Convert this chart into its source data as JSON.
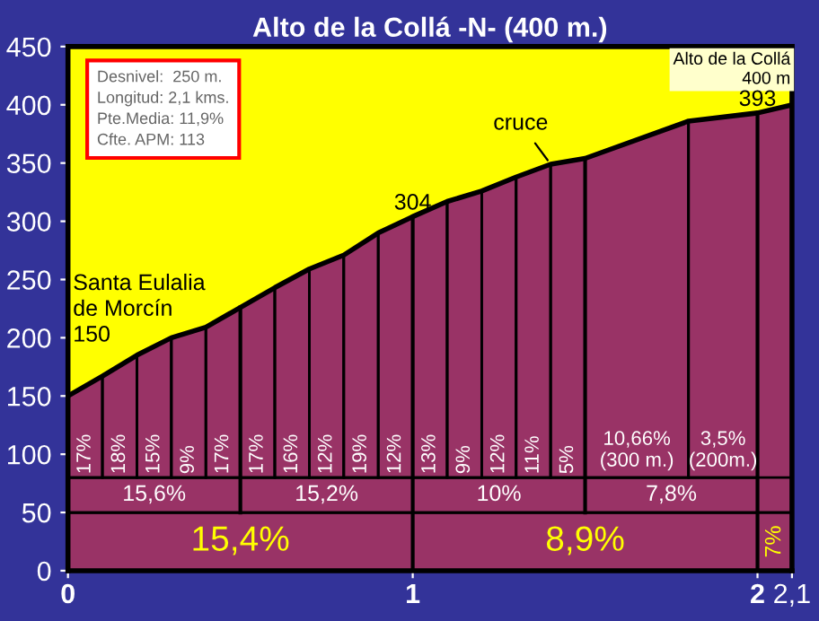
{
  "chart_data": {
    "type": "area",
    "title": "Alto de la Collá -N- (400 m.)",
    "x": [
      0,
      0.1,
      0.2,
      0.3,
      0.4,
      0.5,
      0.6,
      0.7,
      0.8,
      0.9,
      1.0,
      1.1,
      1.2,
      1.3,
      1.4,
      1.5,
      1.8,
      2.0,
      2.1
    ],
    "series": [
      {
        "color": "#993366",
        "values": [
          150,
          167,
          185,
          200,
          209,
          226,
          243,
          259,
          271,
          290,
          304,
          317,
          326,
          338,
          349,
          354,
          386,
          393,
          400
        ]
      }
    ],
    "xlim": [
      0,
      2.1
    ],
    "ylim": [
      0,
      450
    ],
    "xticks": [
      0,
      1,
      2,
      {
        "value": 2.1,
        "label": "2,1"
      }
    ],
    "yticks": [
      0,
      50,
      100,
      150,
      200,
      250,
      300,
      350,
      400,
      450
    ],
    "grid": false,
    "legend": false,
    "ref_lines": [
      {
        "axis": "y",
        "value": 80,
        "color": "#000000"
      },
      {
        "axis": "y",
        "value": 50,
        "color": "#000000"
      },
      {
        "axis": "x",
        "value": 0.1,
        "color": "#000000"
      },
      {
        "axis": "x",
        "value": 0.2,
        "color": "#000000"
      },
      {
        "axis": "x",
        "value": 0.3,
        "color": "#000000"
      },
      {
        "axis": "x",
        "value": 0.4,
        "color": "#000000"
      },
      {
        "axis": "x",
        "value": 0.5,
        "color": "#000000"
      },
      {
        "axis": "x",
        "value": 0.6,
        "color": "#000000"
      },
      {
        "axis": "x",
        "value": 0.7,
        "color": "#000000"
      },
      {
        "axis": "x",
        "value": 0.8,
        "color": "#000000"
      },
      {
        "axis": "x",
        "value": 0.9,
        "color": "#000000"
      },
      {
        "axis": "x",
        "value": 1.0,
        "color": "#000000"
      },
      {
        "axis": "x",
        "value": 1.1,
        "color": "#000000"
      },
      {
        "axis": "x",
        "value": 1.2,
        "color": "#000000"
      },
      {
        "axis": "x",
        "value": 1.3,
        "color": "#000000"
      },
      {
        "axis": "x",
        "value": 1.4,
        "color": "#000000"
      },
      {
        "axis": "x",
        "value": 1.5,
        "color": "#000000"
      },
      {
        "axis": "x",
        "value": 1.8,
        "color": "#000000"
      },
      {
        "axis": "x",
        "value": 2.0,
        "color": "#000000"
      }
    ],
    "annotations": [
      "Desnivel:  250 m.\nLongitud: 2,1 kms.\nPte.Media: 11,9%\nCfte. APM: 113",
      "Alto de la Collá\n400 m",
      {
        "text": "Santa Eulalia\nde Morcín\n150",
        "x": 0,
        "y": 150
      },
      {
        "text": "304",
        "x": 1.0,
        "y": 304
      },
      {
        "text": "393",
        "x": 2.0,
        "y": 393
      },
      {
        "text": "cruce",
        "x": 1.4,
        "y": 349
      }
    ],
    "bands": [
      {
        "axis": "x",
        "from": 0,
        "to": 1,
        "label": "15,4%",
        "color": "#993366"
      },
      {
        "axis": "x",
        "from": 1,
        "to": 2,
        "label": "8,9%",
        "color": "#993366"
      },
      {
        "axis": "x",
        "from": 2,
        "to": 2.1,
        "label": "7%",
        "color": "#993366"
      },
      {
        "axis": "x",
        "from": 0,
        "to": 0.5,
        "label": "15,6%"
      },
      {
        "axis": "x",
        "from": 0.5,
        "to": 1,
        "label": "15,2%"
      },
      {
        "axis": "x",
        "from": 1,
        "to": 1.5,
        "label": "10%"
      },
      {
        "axis": "x",
        "from": 1.5,
        "to": 2,
        "label": "7,8%"
      },
      {
        "axis": "x",
        "from": 0,
        "to": 0.1,
        "label": "17%"
      },
      {
        "axis": "x",
        "from": 0.1,
        "to": 0.2,
        "label": "18%"
      },
      {
        "axis": "x",
        "from": 0.2,
        "to": 0.3,
        "label": "15%"
      },
      {
        "axis": "x",
        "from": 0.3,
        "to": 0.4,
        "label": "9%"
      },
      {
        "axis": "x",
        "from": 0.4,
        "to": 0.5,
        "label": "17%"
      },
      {
        "axis": "x",
        "from": 0.5,
        "to": 0.6,
        "label": "17%"
      },
      {
        "axis": "x",
        "from": 0.6,
        "to": 0.7,
        "label": "16%"
      },
      {
        "axis": "x",
        "from": 0.7,
        "to": 0.8,
        "label": "12%"
      },
      {
        "axis": "x",
        "from": 0.8,
        "to": 0.9,
        "label": "19%"
      },
      {
        "axis": "x",
        "from": 0.9,
        "to": 1.0,
        "label": "12%"
      },
      {
        "axis": "x",
        "from": 1.0,
        "to": 1.1,
        "label": "13%"
      },
      {
        "axis": "x",
        "from": 1.1,
        "to": 1.2,
        "label": "9%"
      },
      {
        "axis": "x",
        "from": 1.2,
        "to": 1.3,
        "label": "12%"
      },
      {
        "axis": "x",
        "from": 1.3,
        "to": 1.4,
        "label": "11%"
      },
      {
        "axis": "x",
        "from": 1.4,
        "to": 1.5,
        "label": "5%"
      },
      {
        "axis": "x",
        "from": 1.5,
        "to": 1.8,
        "label": "10,66%\n(300 m.)"
      },
      {
        "axis": "x",
        "from": 1.8,
        "to": 2.0,
        "label": "3,5%\n(200m.)"
      }
    ]
  }
}
